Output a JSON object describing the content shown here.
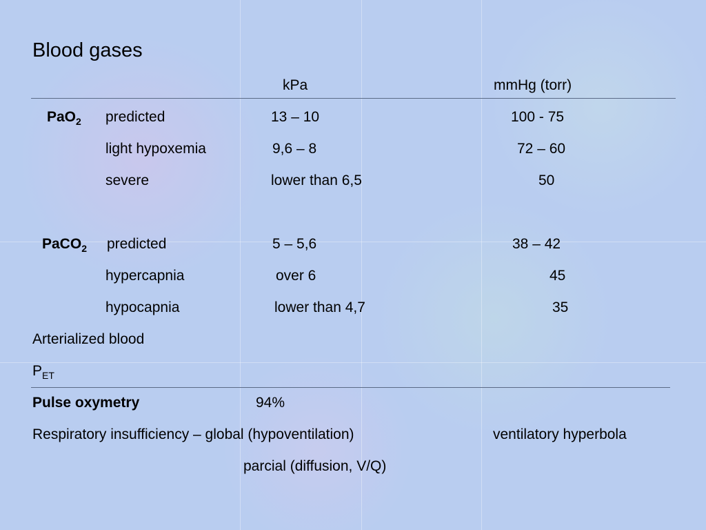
{
  "title": "Blood gases",
  "columns": {
    "kpa": "kPa",
    "mmhg": "mmHg (torr)"
  },
  "groups": [
    {
      "label": "PaO",
      "subscript": "2",
      "rows": [
        {
          "name": "predicted",
          "kpa": "13 – 10",
          "mmhg": "100 - 75"
        },
        {
          "name": "light hypoxemia",
          "kpa": "9,6 – 8",
          "mmhg": "72 – 60"
        },
        {
          "name": "severe",
          "kpa": "lower than 6,5",
          "mmhg": "50"
        }
      ]
    },
    {
      "label": "PaCO",
      "subscript": "2",
      "rows": [
        {
          "name": "predicted",
          "kpa": "5 – 5,6",
          "mmhg": "38 – 42"
        },
        {
          "name": "hypercapnia",
          "kpa": "over 6",
          "mmhg": "45"
        },
        {
          "name": "hypocapnia",
          "kpa": "lower than 4,7",
          "mmhg": "35"
        }
      ]
    }
  ],
  "arterialized": "Arterialized blood",
  "pet": {
    "label": "P",
    "subscript": "ET"
  },
  "pulse": {
    "label": "Pulse oxymetry",
    "value": "94%"
  },
  "insufficiency": {
    "label": "Respiratory insufficiency – global (hypoventilation)",
    "note": "ventilatory hyperbola",
    "second": "parcial (diffusion, V/Q)"
  }
}
